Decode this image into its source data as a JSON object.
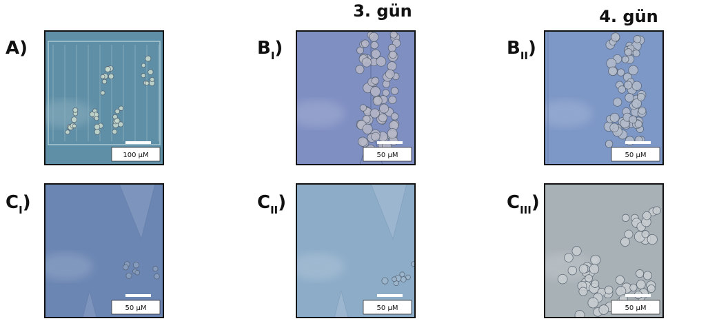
{
  "headers": [
    "3. gün",
    "4. gün"
  ],
  "panels": [
    {
      "letter": "A",
      "sub": null,
      "paren": ")",
      "scale": "100 µM"
    },
    {
      "letter": "B",
      "sub": "I",
      "paren": ")",
      "scale": "50 µM"
    },
    {
      "letter": "B",
      "sub": "II",
      "paren": ")",
      "scale": "50 µM"
    },
    {
      "letter": "C",
      "sub": "I",
      "paren": ")",
      "scale": "50 µM"
    },
    {
      "letter": "C",
      "sub": "II",
      "paren": ")",
      "scale": "50 µM"
    },
    {
      "letter": "C",
      "sub": "III",
      "paren": ")",
      "scale": "50 µM"
    }
  ]
}
